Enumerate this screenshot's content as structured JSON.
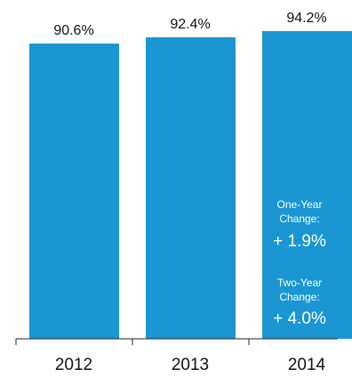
{
  "chart_data": {
    "type": "bar",
    "categories": [
      "2012",
      "2013",
      "2014"
    ],
    "values": [
      90.6,
      92.4,
      94.2
    ],
    "value_labels": [
      "90.6%",
      "92.4%",
      "94.2%"
    ],
    "bar_color": "#1a96d2",
    "axis_color": "#222222",
    "title": "",
    "xlabel": "",
    "ylabel": "",
    "ylim": [
      0,
      100
    ],
    "grid": false,
    "annotations": [
      {
        "title_line1": "One-Year",
        "title_line2": "Change:",
        "value": "+ 1.9%"
      },
      {
        "title_line1": "Two-Year",
        "title_line2": "Change:",
        "value": "+ 4.0%"
      }
    ]
  }
}
